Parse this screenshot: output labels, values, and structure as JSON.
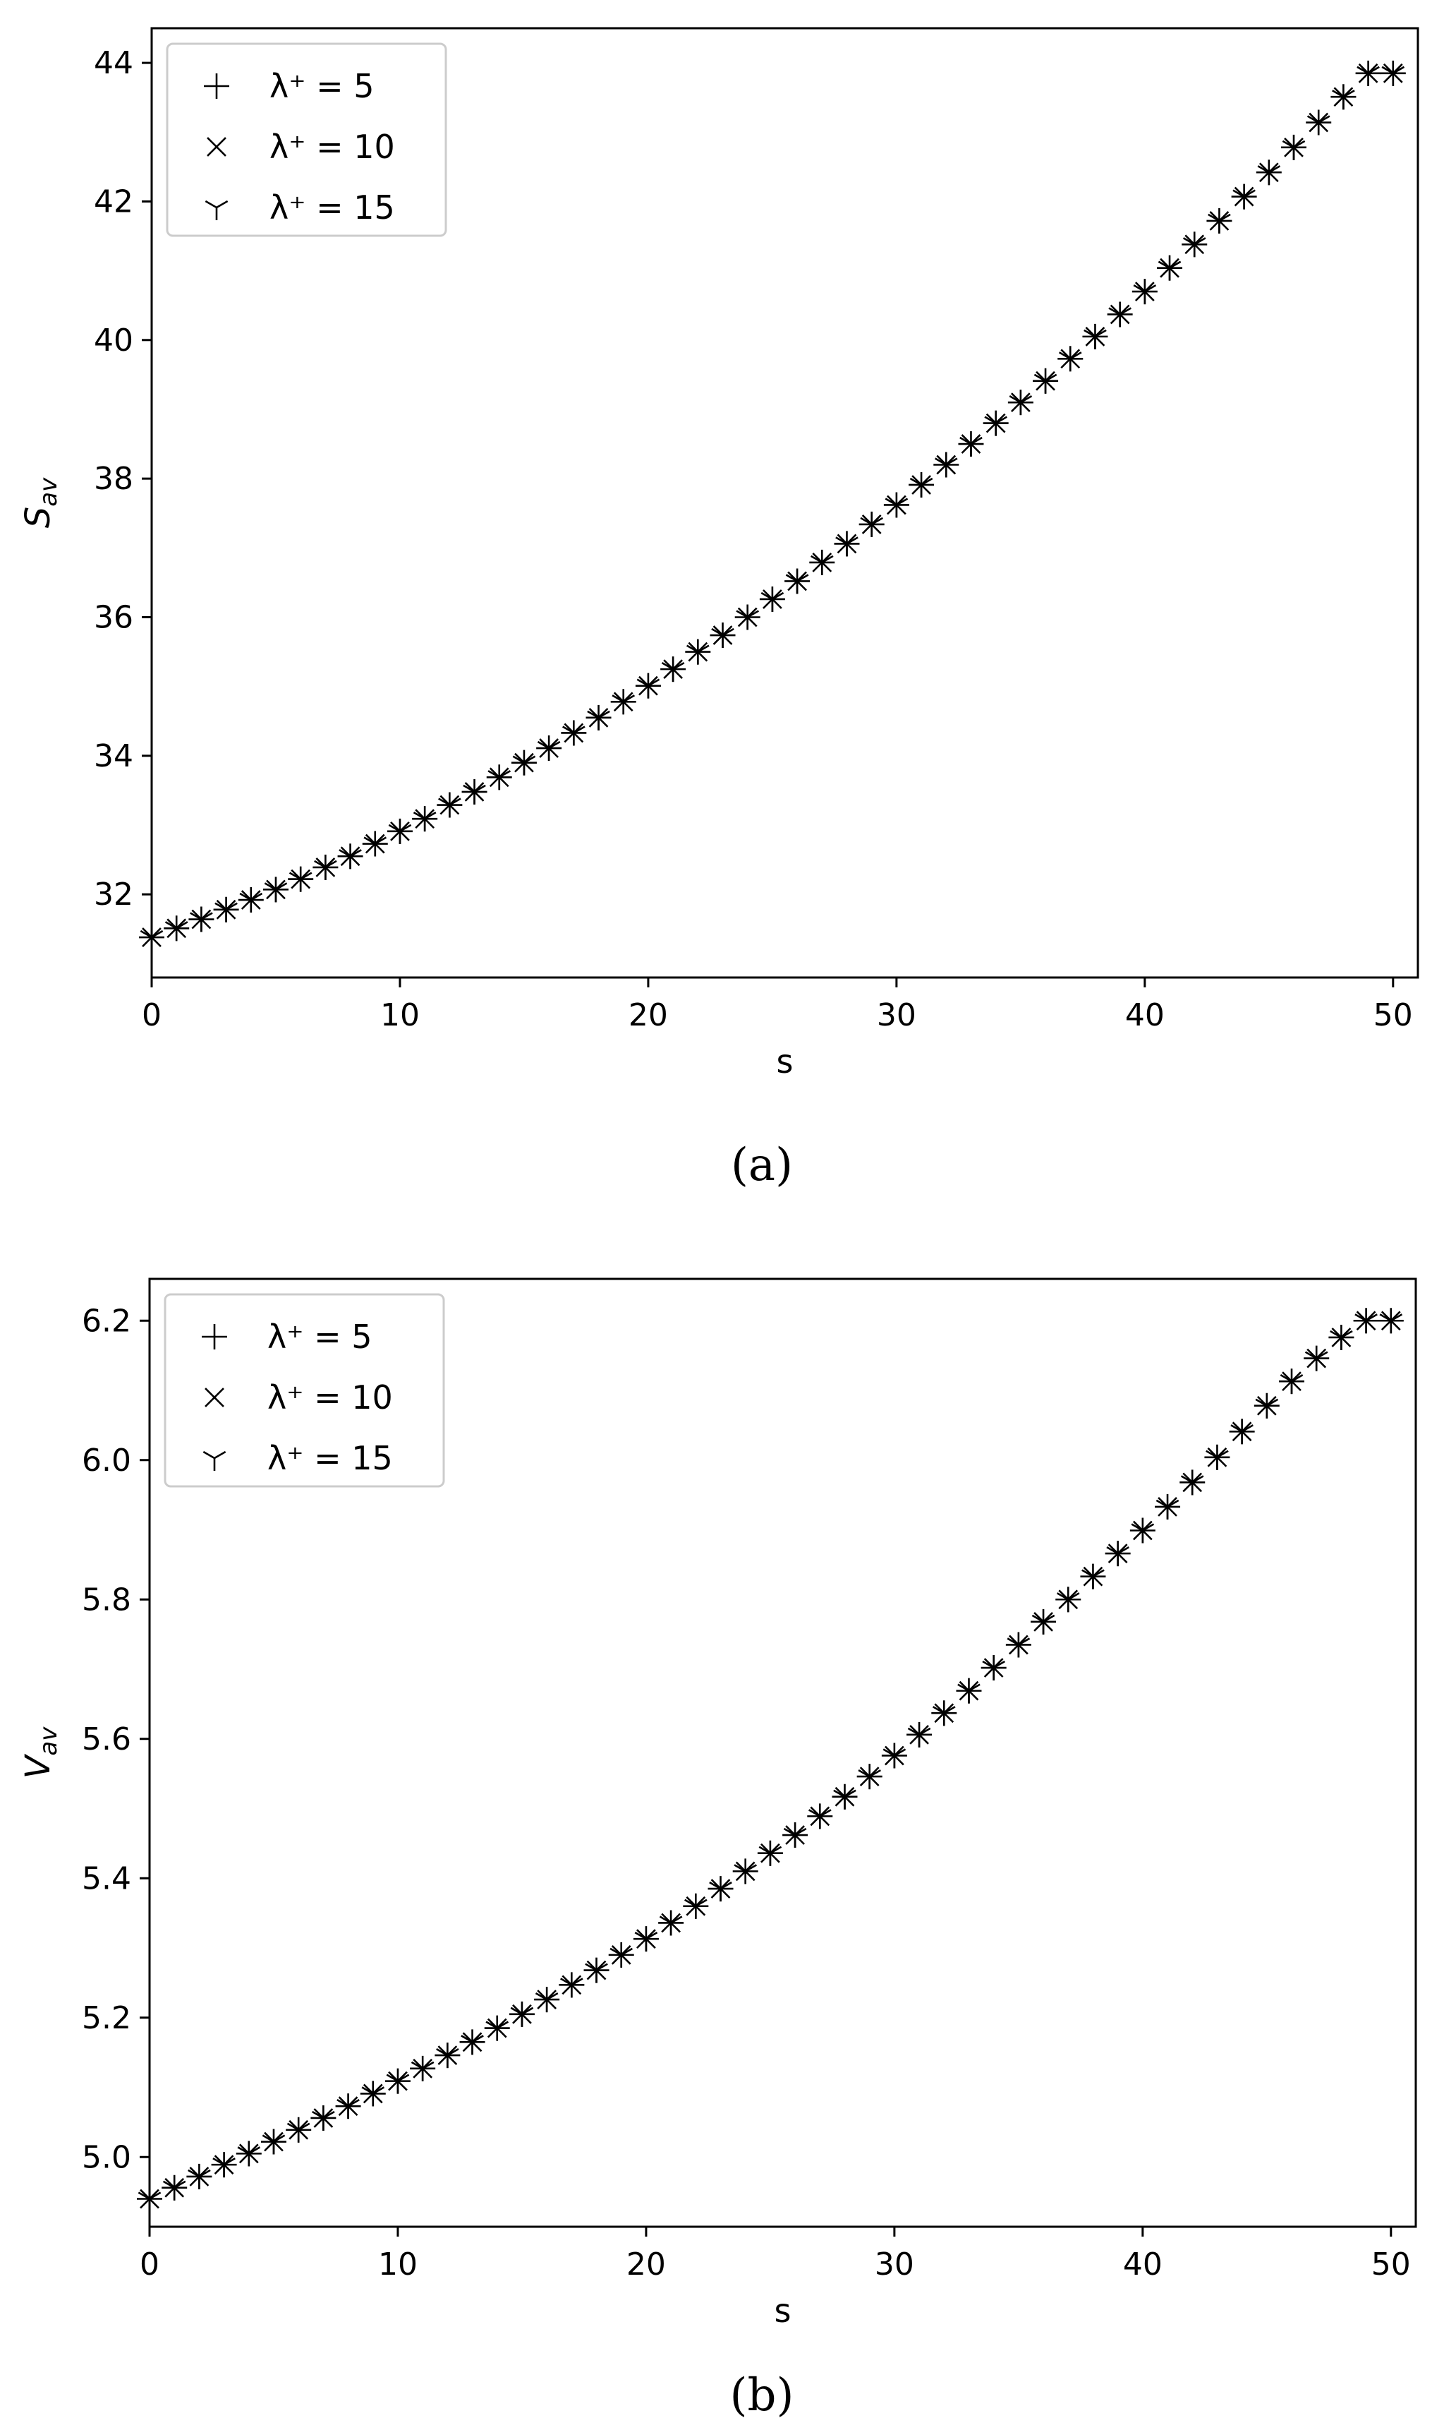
{
  "chart_data": [
    {
      "type": "scatter",
      "panel_label": "(a)",
      "xlabel": "s",
      "ylabel": {
        "main": "S",
        "sub": "av"
      },
      "xlim": [
        0,
        51
      ],
      "ylim": [
        30.8,
        44.5
      ],
      "xticks": [
        0,
        10,
        20,
        30,
        40,
        50
      ],
      "yticks": [
        32,
        34,
        36,
        38,
        40,
        42,
        44
      ],
      "legend": {
        "placement": "top-left",
        "entries": [
          {
            "marker": "plus",
            "label": "λ⁺ = 5"
          },
          {
            "marker": "x",
            "label": "λ⁺ = 10"
          },
          {
            "marker": "tri-down",
            "label": "λ⁺ = 15"
          }
        ]
      },
      "grid": false,
      "x": [
        0,
        1,
        2,
        3,
        4,
        5,
        6,
        7,
        8,
        9,
        10,
        11,
        12,
        13,
        14,
        15,
        16,
        17,
        18,
        19,
        20,
        21,
        22,
        23,
        24,
        25,
        26,
        27,
        28,
        29,
        30,
        31,
        32,
        33,
        34,
        35,
        36,
        37,
        38,
        39,
        40,
        41,
        42,
        43,
        44,
        45,
        46,
        47,
        48,
        49,
        50
      ],
      "series": [
        {
          "name": "λ⁺ = 5",
          "marker": "plus",
          "values": [
            31.38,
            31.51,
            31.64,
            31.78,
            31.92,
            32.07,
            32.22,
            32.39,
            32.55,
            32.73,
            32.91,
            33.09,
            33.29,
            33.48,
            33.69,
            33.9,
            34.11,
            34.33,
            34.55,
            34.78,
            35.01,
            35.25,
            35.5,
            35.74,
            36.0,
            36.26,
            36.52,
            36.79,
            37.06,
            37.34,
            37.62,
            37.91,
            38.2,
            38.5,
            38.8,
            39.1,
            39.41,
            39.73,
            40.05,
            40.37,
            40.7,
            41.04,
            41.38,
            41.72,
            42.07,
            42.42,
            42.78,
            43.14,
            43.51,
            43.85,
            43.85
          ]
        },
        {
          "name": "λ⁺ = 10",
          "marker": "x",
          "values": [
            31.38,
            31.51,
            31.64,
            31.78,
            31.92,
            32.07,
            32.22,
            32.39,
            32.55,
            32.73,
            32.91,
            33.09,
            33.29,
            33.48,
            33.69,
            33.9,
            34.11,
            34.33,
            34.55,
            34.78,
            35.01,
            35.25,
            35.5,
            35.74,
            36.0,
            36.26,
            36.52,
            36.79,
            37.06,
            37.34,
            37.62,
            37.91,
            38.2,
            38.5,
            38.8,
            39.1,
            39.41,
            39.73,
            40.05,
            40.37,
            40.7,
            41.04,
            41.38,
            41.72,
            42.07,
            42.42,
            42.78,
            43.14,
            43.51,
            43.85,
            43.85
          ]
        },
        {
          "name": "λ⁺ = 15",
          "marker": "tri-down",
          "values": [
            31.38,
            31.51,
            31.64,
            31.78,
            31.92,
            32.07,
            32.22,
            32.39,
            32.55,
            32.73,
            32.91,
            33.09,
            33.29,
            33.48,
            33.69,
            33.9,
            34.11,
            34.33,
            34.55,
            34.78,
            35.01,
            35.25,
            35.5,
            35.74,
            36.0,
            36.26,
            36.52,
            36.79,
            37.06,
            37.34,
            37.62,
            37.91,
            38.2,
            38.5,
            38.8,
            39.1,
            39.41,
            39.73,
            40.05,
            40.37,
            40.7,
            41.04,
            41.38,
            41.72,
            42.07,
            42.42,
            42.78,
            43.14,
            43.51,
            43.85,
            43.85
          ]
        }
      ]
    },
    {
      "type": "scatter",
      "panel_label": "(b)",
      "xlabel": "s",
      "ylabel": {
        "main": "V",
        "sub": "av"
      },
      "xlim": [
        0,
        51
      ],
      "ylim": [
        4.9,
        6.26
      ],
      "xticks": [
        0,
        10,
        20,
        30,
        40,
        50
      ],
      "yticks": [
        5.0,
        5.2,
        5.4,
        5.6,
        5.8,
        6.0,
        6.2
      ],
      "ytick_labels": [
        "5.0",
        "5.2",
        "5.4",
        "5.6",
        "5.8",
        "6.0",
        "6.2"
      ],
      "legend": {
        "placement": "top-left",
        "entries": [
          {
            "marker": "plus",
            "label": "λ⁺ = 5"
          },
          {
            "marker": "x",
            "label": "λ⁺ = 10"
          },
          {
            "marker": "tri-down",
            "label": "λ⁺ = 15"
          }
        ]
      },
      "grid": false,
      "x": [
        0,
        1,
        2,
        3,
        4,
        5,
        6,
        7,
        8,
        9,
        10,
        11,
        12,
        13,
        14,
        15,
        16,
        17,
        18,
        19,
        20,
        21,
        22,
        23,
        24,
        25,
        26,
        27,
        28,
        29,
        30,
        31,
        32,
        33,
        34,
        35,
        36,
        37,
        38,
        39,
        40,
        41,
        42,
        43,
        44,
        45,
        46,
        47,
        48,
        49,
        50
      ],
      "series": [
        {
          "name": "λ⁺ = 5",
          "marker": "plus",
          "values": [
            4.94,
            4.956,
            4.972,
            4.989,
            5.005,
            5.022,
            5.039,
            5.056,
            5.073,
            5.091,
            5.109,
            5.127,
            5.146,
            5.165,
            5.185,
            5.205,
            5.226,
            5.247,
            5.268,
            5.29,
            5.313,
            5.336,
            5.36,
            5.385,
            5.41,
            5.436,
            5.462,
            5.489,
            5.517,
            5.546,
            5.576,
            5.606,
            5.637,
            5.669,
            5.702,
            5.735,
            5.768,
            5.8,
            5.833,
            5.866,
            5.899,
            5.933,
            5.968,
            6.004,
            6.041,
            6.078,
            6.113,
            6.146,
            6.176,
            6.2,
            6.2
          ]
        },
        {
          "name": "λ⁺ = 10",
          "marker": "x",
          "values": [
            4.94,
            4.956,
            4.972,
            4.989,
            5.005,
            5.022,
            5.039,
            5.056,
            5.073,
            5.091,
            5.109,
            5.127,
            5.146,
            5.165,
            5.185,
            5.205,
            5.226,
            5.247,
            5.268,
            5.29,
            5.313,
            5.336,
            5.36,
            5.385,
            5.41,
            5.436,
            5.462,
            5.489,
            5.517,
            5.546,
            5.576,
            5.606,
            5.637,
            5.669,
            5.702,
            5.735,
            5.768,
            5.8,
            5.833,
            5.866,
            5.899,
            5.933,
            5.968,
            6.004,
            6.041,
            6.078,
            6.113,
            6.146,
            6.176,
            6.2,
            6.2
          ]
        },
        {
          "name": "λ⁺ = 15",
          "marker": "tri-down",
          "values": [
            4.94,
            4.956,
            4.972,
            4.989,
            5.005,
            5.022,
            5.039,
            5.056,
            5.073,
            5.091,
            5.109,
            5.127,
            5.146,
            5.165,
            5.185,
            5.205,
            5.226,
            5.247,
            5.268,
            5.29,
            5.313,
            5.336,
            5.36,
            5.385,
            5.41,
            5.436,
            5.462,
            5.489,
            5.517,
            5.546,
            5.576,
            5.606,
            5.637,
            5.669,
            5.702,
            5.735,
            5.768,
            5.8,
            5.833,
            5.866,
            5.899,
            5.933,
            5.968,
            6.004,
            6.041,
            6.078,
            6.113,
            6.146,
            6.176,
            6.2,
            6.2
          ]
        }
      ]
    }
  ],
  "colors": {
    "marker": "#000000",
    "axis": "#000000",
    "legend_border": "#cccccc",
    "background": "#ffffff"
  }
}
